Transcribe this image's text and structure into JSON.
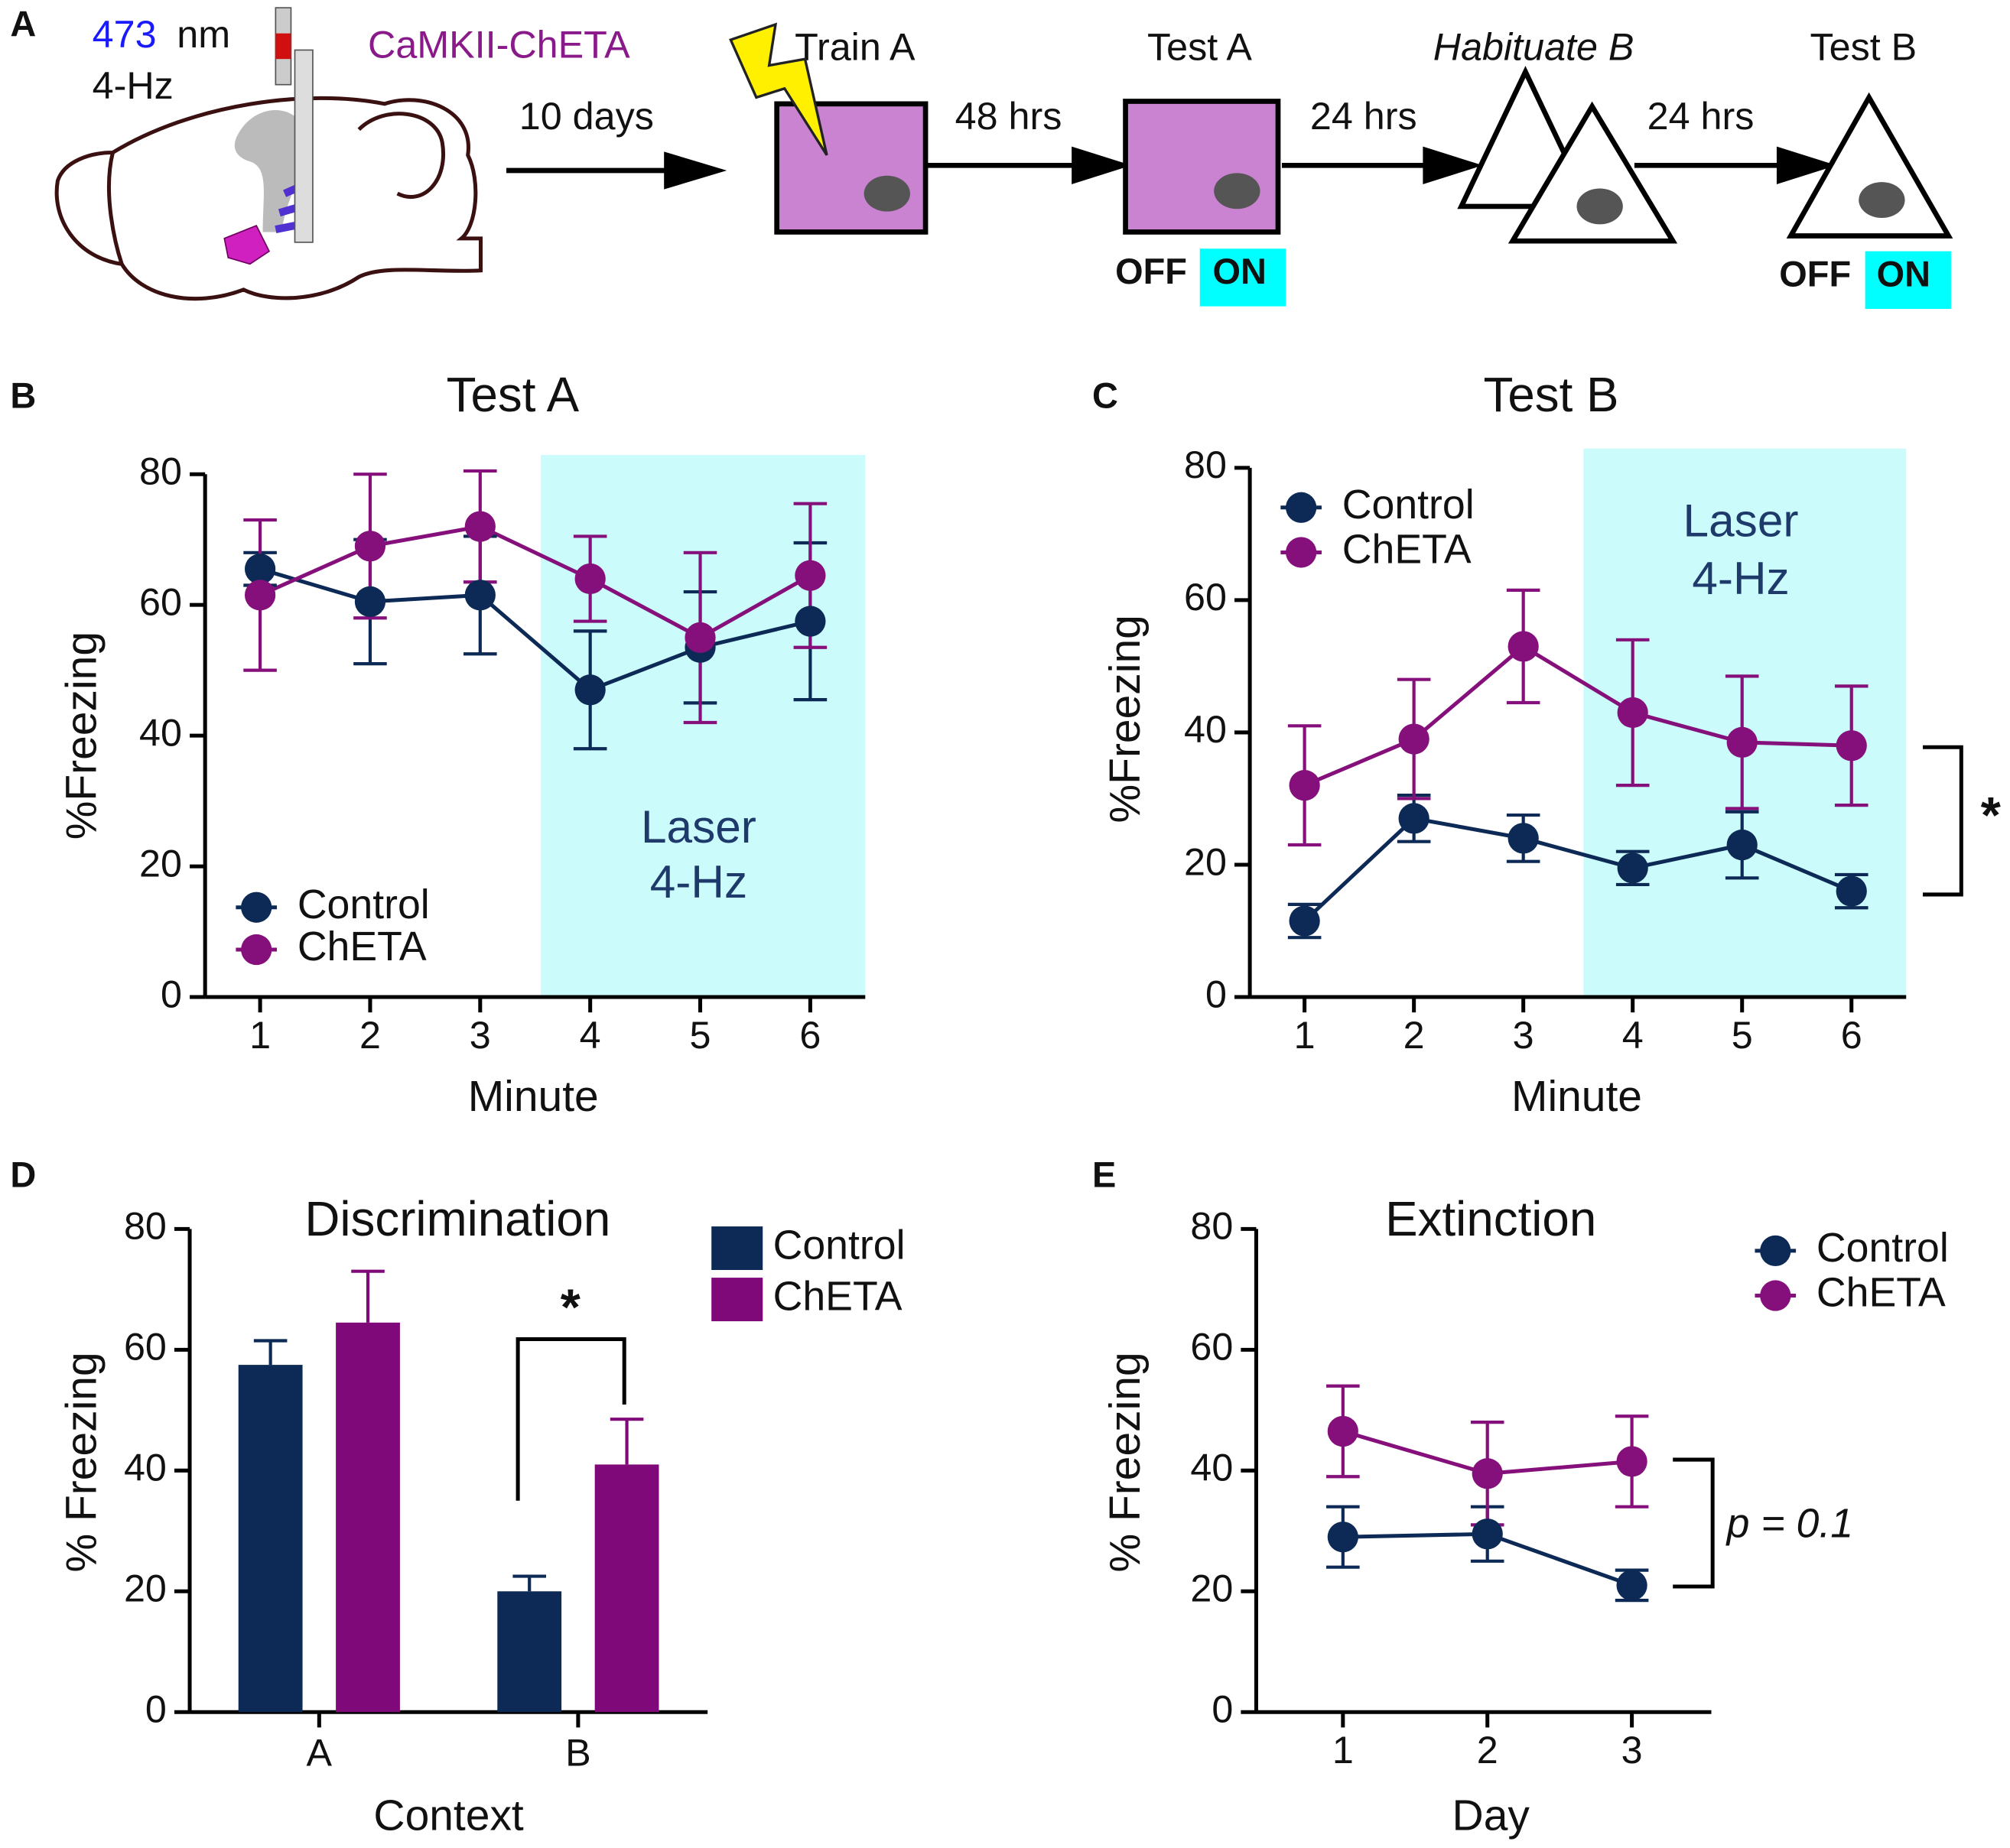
{
  "panel_labels": [
    "A",
    "B",
    "C",
    "D",
    "E"
  ],
  "diagram": {
    "wavelength": "473",
    "wavelength_unit": "nm",
    "frequency": "4-Hz",
    "construct": "CaMKII-ChETA",
    "intervals": [
      "10 days",
      "48 hrs",
      "24 hrs",
      "24 hrs"
    ],
    "stages": [
      "Train A",
      "Test A",
      "Habituate B",
      "Test B"
    ],
    "test_a_states": [
      "OFF",
      "ON"
    ],
    "test_b_states": [
      "OFF",
      "ON"
    ]
  },
  "chart_data": [
    {
      "type": "line",
      "title": "Test A",
      "xlabel": "Minute",
      "ylabel": "%Freezing",
      "x": [
        1,
        2,
        3,
        4,
        5,
        6
      ],
      "xlim": [
        0.5,
        6.5
      ],
      "xticks": [
        1,
        2,
        3,
        4,
        5,
        6
      ],
      "ylim": [
        0,
        80
      ],
      "yticks": [
        0,
        20,
        40,
        60,
        80
      ],
      "shaded_x": [
        3.55,
        6.5
      ],
      "shade_color": "#ccfbfb",
      "shade_text": [
        "Laser",
        "4-Hz"
      ],
      "legend": "lower left",
      "series": [
        {
          "name": "Control",
          "color": "#0c2a55",
          "values": [
            65.5,
            60.5,
            61.5,
            47,
            53.5,
            57.5
          ],
          "errors": [
            2.5,
            9.5,
            9,
            9,
            8.5,
            12
          ]
        },
        {
          "name": "ChETA",
          "color": "#86107b",
          "values": [
            61.5,
            69,
            72,
            64,
            55,
            64.5
          ],
          "errors": [
            11.5,
            11,
            8.5,
            6.5,
            13,
            11
          ]
        }
      ]
    },
    {
      "type": "line",
      "title": "Test B",
      "xlabel": "Minute",
      "ylabel": "%Freezing",
      "x": [
        1,
        2,
        3,
        4,
        5,
        6
      ],
      "xlim": [
        0.5,
        6.5
      ],
      "xticks": [
        1,
        2,
        3,
        4,
        5,
        6
      ],
      "ylim": [
        0,
        80
      ],
      "yticks": [
        0,
        20,
        40,
        60,
        80
      ],
      "shaded_x": [
        3.55,
        6.5
      ],
      "shade_color": "#ccfbfb",
      "shade_text": [
        "Laser",
        "4-Hz"
      ],
      "legend": "upper left",
      "annotations": [
        {
          "text": "*"
        }
      ],
      "series": [
        {
          "name": "Control",
          "color": "#0c2a55",
          "values": [
            11.5,
            27,
            24,
            19.5,
            23,
            16
          ],
          "errors": [
            2.5,
            3.5,
            3.5,
            2.5,
            5,
            2.5
          ]
        },
        {
          "name": "ChETA",
          "color": "#86107b",
          "values": [
            32,
            39,
            53,
            43,
            38.5,
            38
          ],
          "errors": [
            9,
            9,
            8.5,
            11,
            10,
            9
          ]
        }
      ]
    },
    {
      "type": "bar",
      "title": "Discrimination",
      "xlabel": "Context",
      "ylabel": "% Freezing",
      "categories": [
        "A",
        "B"
      ],
      "ylim": [
        0,
        80
      ],
      "yticks": [
        0,
        20,
        40,
        60,
        80
      ],
      "legend": "right",
      "annotations": [
        {
          "text": "*"
        }
      ],
      "series": [
        {
          "name": "Control",
          "color": "#0c2a55",
          "values": [
            57.5,
            20
          ],
          "errors": [
            4,
            2.5
          ]
        },
        {
          "name": "ChETA",
          "color": "#80097a",
          "values": [
            64.5,
            41
          ],
          "errors": [
            8.5,
            7.5
          ]
        }
      ]
    },
    {
      "type": "line",
      "title": "Extinction",
      "xlabel": "Day",
      "ylabel": "% Freezing",
      "x": [
        1,
        2,
        3
      ],
      "xlim": [
        0.4,
        3.55
      ],
      "xticks": [
        1,
        2,
        3
      ],
      "ylim": [
        0,
        80
      ],
      "yticks": [
        0,
        20,
        40,
        60,
        80
      ],
      "legend": "upper right",
      "annotations": [
        {
          "text": "p = 0.1"
        }
      ],
      "series": [
        {
          "name": "Control",
          "color": "#0c2a55",
          "values": [
            29,
            29.5,
            21
          ],
          "errors": [
            5,
            4.5,
            2.5
          ]
        },
        {
          "name": "ChETA",
          "color": "#86107b",
          "values": [
            46.5,
            39.5,
            41.5
          ],
          "errors": [
            7.5,
            8.5,
            7.5
          ]
        }
      ]
    }
  ]
}
